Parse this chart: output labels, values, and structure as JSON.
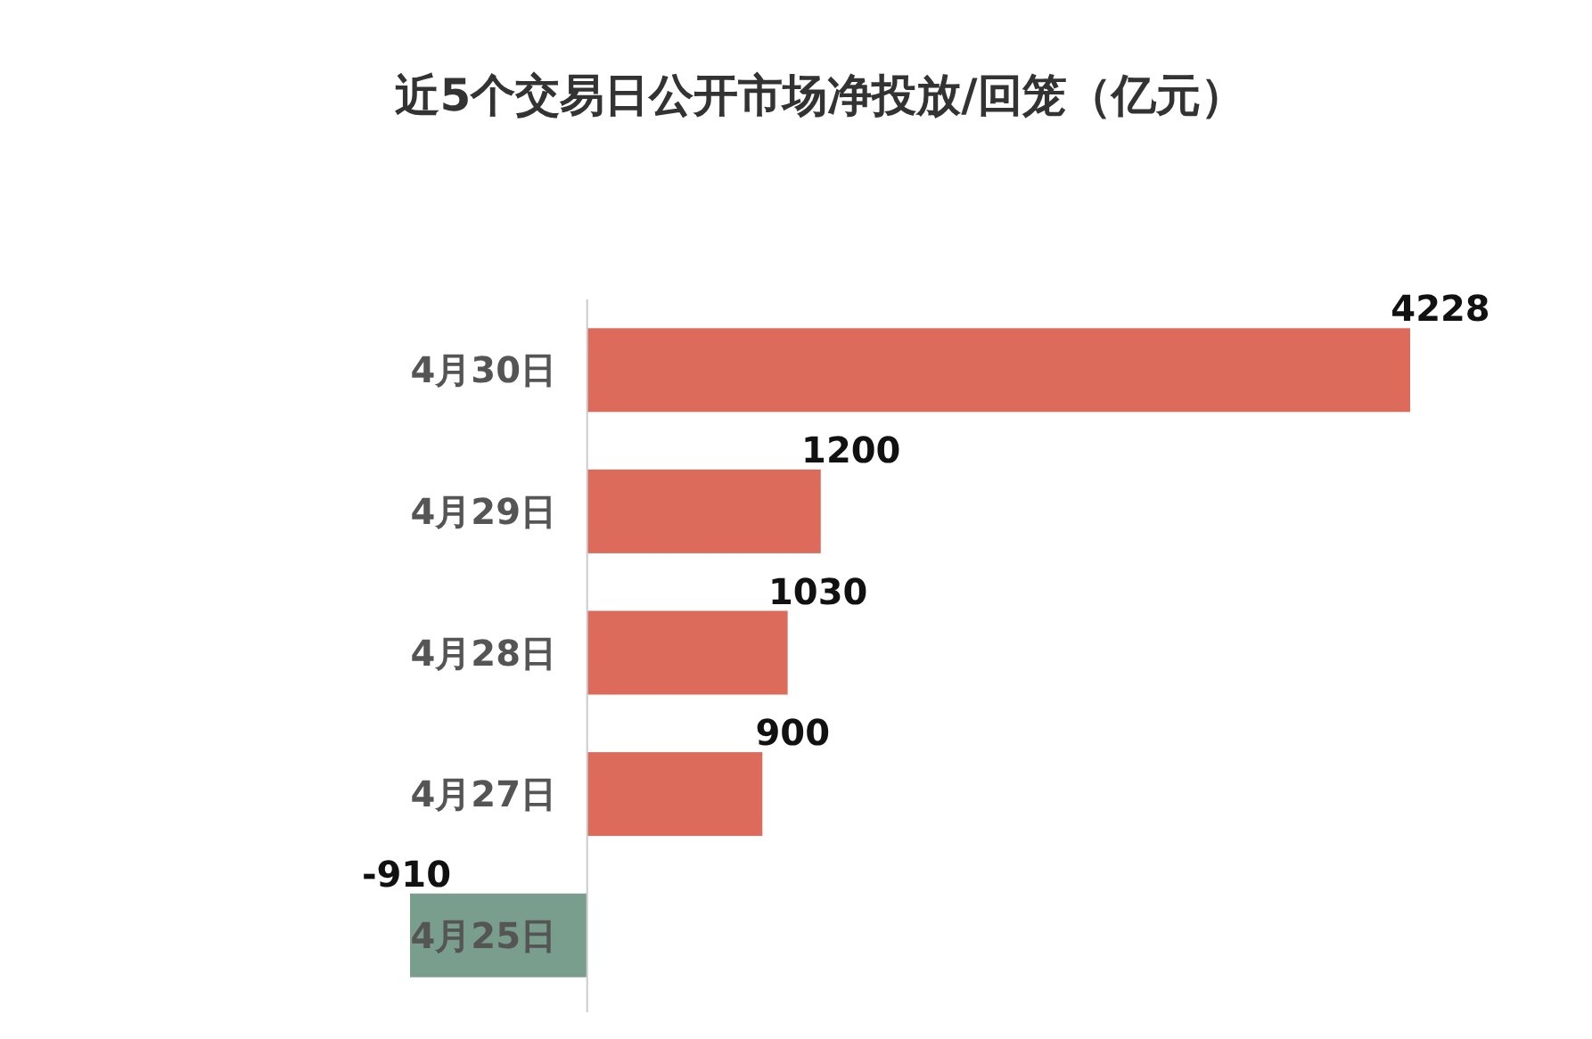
{
  "chart_data": {
    "type": "bar",
    "orientation": "horizontal",
    "title": "近5个交易日公开市场净投放/回笼（亿元）",
    "categories": [
      "4月30日",
      "4月29日",
      "4月28日",
      "4月27日",
      "4月25日"
    ],
    "values": [
      4228,
      1200,
      1030,
      900,
      -910
    ],
    "colors": [
      "#dc6b5c",
      "#dc6b5c",
      "#dc6b5c",
      "#dc6b5c",
      "#7a9e8e"
    ],
    "data_labels": true
  }
}
